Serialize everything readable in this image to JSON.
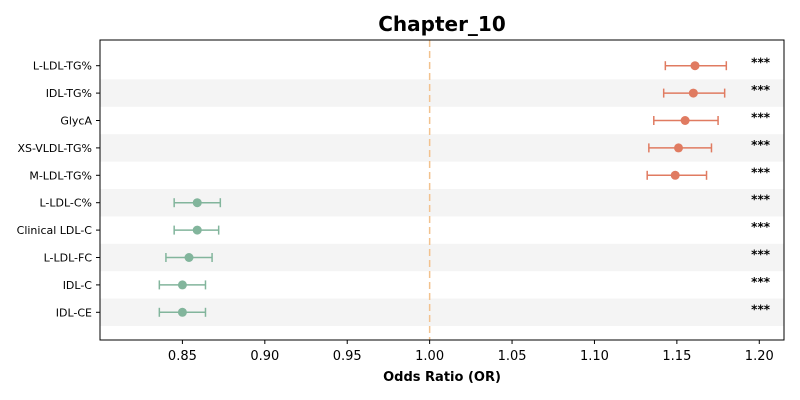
{
  "chart_data": {
    "type": "forest",
    "title": "Chapter_10",
    "xlabel": "Odds Ratio (OR)",
    "ylabel": "",
    "xlim": [
      0.8,
      1.215
    ],
    "xticks": [
      0.85,
      0.9,
      0.95,
      1.0,
      1.05,
      1.1,
      1.15,
      1.2
    ],
    "xtick_labels": [
      "0.85",
      "0.90",
      "0.95",
      "1.00",
      "1.05",
      "1.10",
      "1.15",
      "1.20"
    ],
    "reference_line": 1.0,
    "grid": false,
    "colors": {
      "positive": "#E07B61",
      "negative": "#82B59C",
      "reference": "#F2C28E",
      "band": "#F4F4F4"
    },
    "rows": [
      {
        "label": "L-LDL-TG%",
        "or": 1.161,
        "lower": 1.143,
        "upper": 1.18,
        "sig": "***",
        "direction": "positive"
      },
      {
        "label": "IDL-TG%",
        "or": 1.16,
        "lower": 1.142,
        "upper": 1.179,
        "sig": "***",
        "direction": "positive"
      },
      {
        "label": "GlycA",
        "or": 1.155,
        "lower": 1.136,
        "upper": 1.175,
        "sig": "***",
        "direction": "positive"
      },
      {
        "label": "XS-VLDL-TG%",
        "or": 1.151,
        "lower": 1.133,
        "upper": 1.171,
        "sig": "***",
        "direction": "positive"
      },
      {
        "label": "M-LDL-TG%",
        "or": 1.149,
        "lower": 1.132,
        "upper": 1.168,
        "sig": "***",
        "direction": "positive"
      },
      {
        "label": "L-LDL-C%",
        "or": 0.859,
        "lower": 0.845,
        "upper": 0.873,
        "sig": "***",
        "direction": "negative"
      },
      {
        "label": "Clinical LDL-C",
        "or": 0.859,
        "lower": 0.845,
        "upper": 0.872,
        "sig": "***",
        "direction": "negative"
      },
      {
        "label": "L-LDL-FC",
        "or": 0.854,
        "lower": 0.84,
        "upper": 0.868,
        "sig": "***",
        "direction": "negative"
      },
      {
        "label": "IDL-C",
        "or": 0.85,
        "lower": 0.836,
        "upper": 0.864,
        "sig": "***",
        "direction": "negative"
      },
      {
        "label": "IDL-CE",
        "or": 0.85,
        "lower": 0.836,
        "upper": 0.864,
        "sig": "***",
        "direction": "negative"
      }
    ]
  }
}
